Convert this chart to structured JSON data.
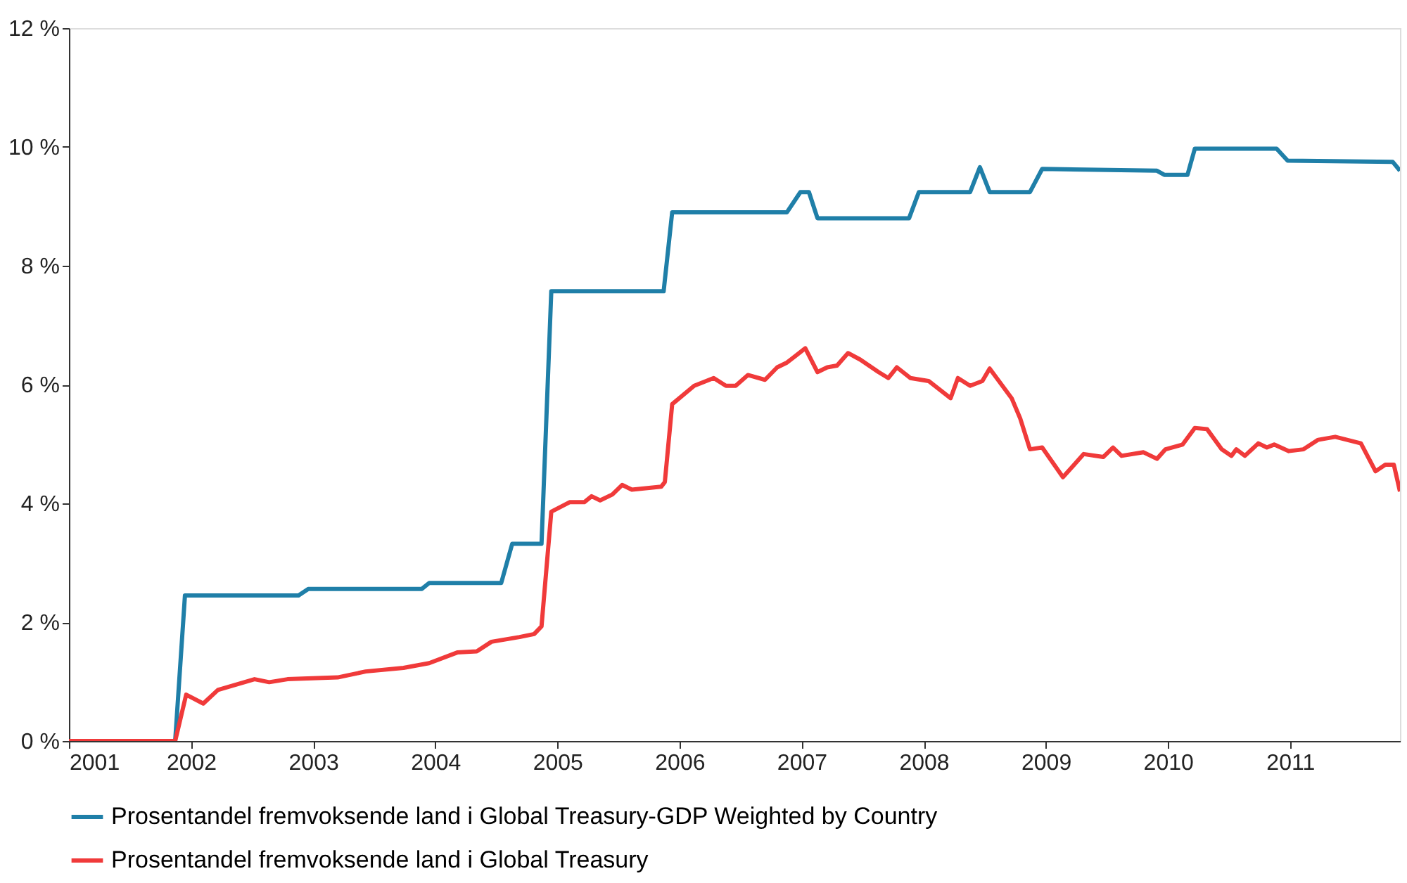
{
  "chart_data": {
    "type": "line",
    "xlim": [
      2001,
      2011.9
    ],
    "ylim": [
      0,
      12
    ],
    "xticks": [
      2001,
      2002,
      2003,
      2004,
      2005,
      2006,
      2007,
      2008,
      2009,
      2010,
      2011
    ],
    "yticks": [
      {
        "value": 0,
        "label": "0 %"
      },
      {
        "value": 2,
        "label": "2 %"
      },
      {
        "value": 4,
        "label": "4 %"
      },
      {
        "value": 6,
        "label": "6 %"
      },
      {
        "value": 8,
        "label": "8 %"
      },
      {
        "value": 10,
        "label": "10 %"
      },
      {
        "value": 12,
        "label": "12 %"
      }
    ],
    "grid": false,
    "legend": "bottom",
    "line_style": "solid",
    "marker": "none",
    "series": [
      {
        "name": "Prosentandel fremvoksende land i Global Treasury-GDP Weighted by Country",
        "color": "#1f7fa8",
        "x": [
          2001,
          2001.87,
          2001.95,
          2002.88,
          2002.96,
          2003.89,
          2003.95,
          2004.54,
          2004.63,
          2004.87,
          2004.95,
          2005.87,
          2005.94,
          2006.88,
          2006.99,
          2007.06,
          2007.13,
          2007.88,
          2007.96,
          2008.38,
          2008.46,
          2008.54,
          2008.87,
          2008.97,
          2009.91,
          2009.97,
          2010.16,
          2010.22,
          2010.89,
          2010.98,
          2011.84,
          2011.9
        ],
        "values": [
          0,
          0,
          2.45,
          2.45,
          2.56,
          2.56,
          2.66,
          2.66,
          3.32,
          3.32,
          7.57,
          7.57,
          8.9,
          8.9,
          9.24,
          9.24,
          8.8,
          8.8,
          9.24,
          9.24,
          9.66,
          9.24,
          9.24,
          9.63,
          9.6,
          9.53,
          9.53,
          9.97,
          9.97,
          9.77,
          9.75,
          9.6
        ]
      },
      {
        "name": "Prosentandel fremvoksende land i Global Treasury",
        "color": "#f03a3a",
        "x": [
          2001,
          2001.87,
          2001.96,
          2002.1,
          2002.22,
          2002.52,
          2002.64,
          2002.79,
          2003.2,
          2003.43,
          2003.74,
          2003.95,
          2004.18,
          2004.34,
          2004.46,
          2004.69,
          2004.81,
          2004.87,
          2004.95,
          2005.1,
          2005.22,
          2005.28,
          2005.35,
          2005.45,
          2005.53,
          2005.61,
          2005.85,
          2005.88,
          2005.94,
          2006.12,
          2006.28,
          2006.38,
          2006.46,
          2006.56,
          2006.7,
          2006.8,
          2006.88,
          2007.03,
          2007.13,
          2007.21,
          2007.29,
          2007.38,
          2007.48,
          2007.63,
          2007.71,
          2007.78,
          2007.89,
          2008.04,
          2008.22,
          2008.28,
          2008.38,
          2008.48,
          2008.54,
          2008.72,
          2008.79,
          2008.87,
          2008.97,
          2009.14,
          2009.31,
          2009.47,
          2009.55,
          2009.62,
          2009.8,
          2009.91,
          2009.98,
          2010.12,
          2010.22,
          2010.32,
          2010.44,
          2010.52,
          2010.56,
          2010.63,
          2010.74,
          2010.81,
          2010.87,
          2010.99,
          2011.11,
          2011.23,
          2011.37,
          2011.58,
          2011.7,
          2011.78,
          2011.85,
          2011.9
        ],
        "values": [
          0,
          0,
          0.78,
          0.63,
          0.86,
          1.04,
          0.99,
          1.04,
          1.07,
          1.17,
          1.23,
          1.31,
          1.49,
          1.51,
          1.67,
          1.75,
          1.8,
          1.93,
          3.86,
          4.02,
          4.02,
          4.12,
          4.05,
          4.15,
          4.31,
          4.23,
          4.28,
          4.36,
          5.67,
          5.98,
          6.11,
          5.98,
          5.98,
          6.16,
          6.08,
          6.29,
          6.37,
          6.61,
          6.21,
          6.29,
          6.32,
          6.53,
          6.42,
          6.21,
          6.11,
          6.29,
          6.11,
          6.06,
          5.77,
          6.11,
          5.98,
          6.06,
          6.27,
          5.77,
          5.43,
          4.91,
          4.94,
          4.44,
          4.83,
          4.78,
          4.94,
          4.8,
          4.86,
          4.75,
          4.91,
          4.99,
          5.27,
          5.25,
          4.91,
          4.8,
          4.91,
          4.8,
          5.01,
          4.94,
          4.99,
          4.88,
          4.91,
          5.07,
          5.12,
          5.01,
          4.54,
          4.65,
          4.65,
          4.2
        ]
      }
    ]
  }
}
